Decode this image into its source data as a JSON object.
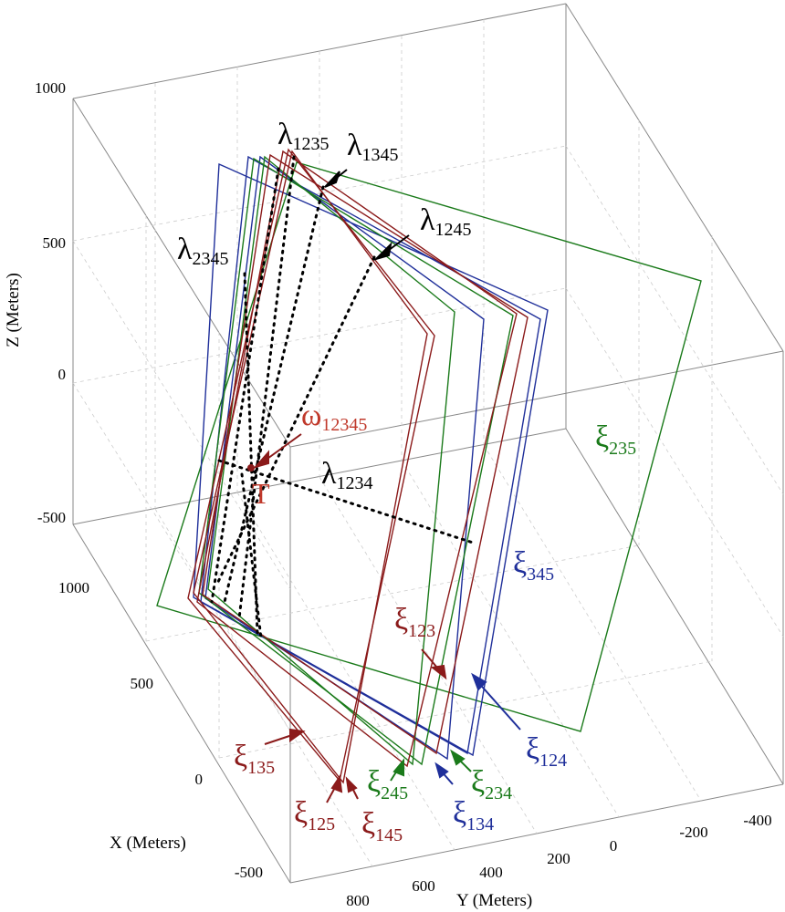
{
  "axes": {
    "z_label": "Z (Meters)",
    "x_label": "X (Meters)",
    "y_label": "Y (Meters)",
    "z_ticks": [
      "1000",
      "500",
      "0",
      "-500"
    ],
    "x_ticks": [
      "1000",
      "500",
      "0",
      "-500"
    ],
    "y_ticks": [
      "800",
      "600",
      "400",
      "200",
      "0",
      "-200",
      "-400"
    ]
  },
  "colors": {
    "red": "#8b1a1a",
    "green": "#1a7a1a",
    "blue": "#1f2f9a",
    "black": "#000000",
    "omega": "#c0392b",
    "box": "#888888",
    "grid": "#cccccc"
  },
  "labels": {
    "lambda_1235": {
      "main": "λ",
      "sub": "1235"
    },
    "lambda_1345": {
      "main": "λ",
      "sub": "1345"
    },
    "lambda_1245": {
      "main": "λ",
      "sub": "1245"
    },
    "lambda_2345": {
      "main": "λ",
      "sub": "2345"
    },
    "lambda_1234": {
      "main": "λ",
      "sub": "1234"
    },
    "omega_12345": {
      "main": "ω",
      "sub": "12345"
    },
    "point_t": "T",
    "xi_235": {
      "main": "ξ",
      "sub": "235"
    },
    "xi_345": {
      "main": "ξ",
      "sub": "345"
    },
    "xi_123": {
      "main": "ξ",
      "sub": "123"
    },
    "xi_124": {
      "main": "ξ",
      "sub": "124"
    },
    "xi_135": {
      "main": "ξ",
      "sub": "135"
    },
    "xi_125": {
      "main": "ξ",
      "sub": "125"
    },
    "xi_145": {
      "main": "ξ",
      "sub": "145"
    },
    "xi_245": {
      "main": "ξ",
      "sub": "245"
    },
    "xi_134": {
      "main": "ξ",
      "sub": "134"
    },
    "xi_234": {
      "main": "ξ",
      "sub": "234"
    }
  }
}
